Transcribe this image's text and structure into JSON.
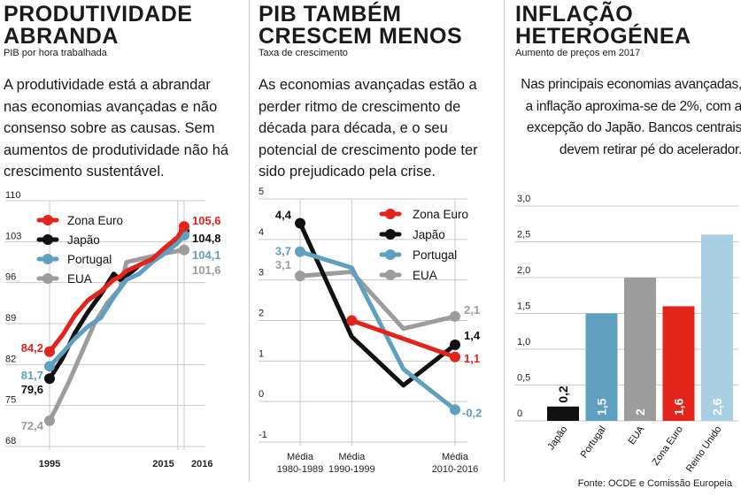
{
  "colors": {
    "zona_euro": "#e3241d",
    "japao": "#111111",
    "portugal": "#5f9fc0",
    "eua": "#9c9c9c",
    "grid": "#c9c9c9"
  },
  "panel1": {
    "title_lines": [
      "PRODUTIVIDADE",
      "ABRANDA"
    ],
    "subtitle": "PIB por hora trabalhada",
    "text": "A produtividade está a abrandar nas economias avançadas e não consenso sobre as causas. Sem aumentos de produtividade não há crescimento sustentável."
  },
  "panel2": {
    "title_lines": [
      "PIB TAMBÉM",
      "CRESCEM MENOS"
    ],
    "subtitle": "Taxa de crescimento",
    "text": "As economias avançadas estão a perder ritmo de crescimento de década para década, e o seu potencial de crescimento pode ter sido prejudicado pela crise."
  },
  "panel3": {
    "title_lines": [
      "INFLAÇÃO",
      "HETEROGÉNEA"
    ],
    "subtitle": "Aumento de preços em 2017",
    "text": "Nas principais economias avançadas, a inflação aproxima-se de 2%, com a excepção do Japão. Bancos centrais devem retirar pé do acelerador."
  },
  "footer": "Fonte: OCDE e Comissão Europeia",
  "chart_data": [
    {
      "type": "line",
      "title": "PRODUTIVIDADE ABRANDA",
      "ylabel": "PIB por hora trabalhada",
      "ylim": [
        68,
        110
      ],
      "yticks": [
        68,
        75,
        82,
        89,
        96,
        103,
        110
      ],
      "xlim": [
        1995,
        2016
      ],
      "xticks": [
        {
          "value": 1995,
          "label": "1995"
        },
        {
          "value": 2015,
          "label": "2015"
        },
        {
          "value": 2016,
          "label": "2016"
        }
      ],
      "series": [
        {
          "name": "EUA",
          "color": "#9c9c9c",
          "points": [
            [
              1995,
              72.4
            ],
            [
              1996,
              74.5
            ],
            [
              1998,
              79
            ],
            [
              2000,
              84
            ],
            [
              2002,
              89
            ],
            [
              2004,
              92.5
            ],
            [
              2006,
              95
            ],
            [
              2007,
              99.5
            ],
            [
              2009,
              100
            ],
            [
              2011,
              100.5
            ],
            [
              2013,
              101
            ],
            [
              2015,
              101.4
            ],
            [
              2016,
              101.6
            ]
          ],
          "start_label": "72,4",
          "end_label": "101,6"
        },
        {
          "name": "Japão",
          "color": "#111111",
          "points": [
            [
              1995,
              79.6
            ],
            [
              1997,
              83
            ],
            [
              1999,
              87.5
            ],
            [
              2001,
              91
            ],
            [
              2003,
              94
            ],
            [
              2005,
              97.5
            ],
            [
              2006,
              96.5
            ],
            [
              2008,
              98
            ],
            [
              2009,
              99
            ],
            [
              2011,
              100
            ],
            [
              2013,
              101.5
            ],
            [
              2015,
              103.6
            ],
            [
              2016,
              104.8
            ]
          ],
          "start_label": "79,6",
          "end_label": "104,8"
        },
        {
          "name": "Portugal",
          "color": "#5f9fc0",
          "points": [
            [
              1995,
              81.7
            ],
            [
              1997,
              84
            ],
            [
              1999,
              86.5
            ],
            [
              2001,
              88.5
            ],
            [
              2003,
              90
            ],
            [
              2005,
              93.5
            ],
            [
              2007,
              96.5
            ],
            [
              2009,
              97.5
            ],
            [
              2011,
              99.5
            ],
            [
              2013,
              101
            ],
            [
              2015,
              102.8
            ],
            [
              2016,
              104.1
            ]
          ],
          "start_label": "81,7",
          "end_label": "104,1"
        },
        {
          "name": "Zona Euro",
          "color": "#e3241d",
          "points": [
            [
              1995,
              84.2
            ],
            [
              1997,
              87
            ],
            [
              1999,
              90.5
            ],
            [
              2001,
              93
            ],
            [
              2003,
              94.5
            ],
            [
              2005,
              96.5
            ],
            [
              2006,
              97
            ],
            [
              2007,
              98
            ],
            [
              2009,
              99
            ],
            [
              2011,
              100
            ],
            [
              2013,
              102
            ],
            [
              2015,
              103.8
            ],
            [
              2016,
              105.6
            ]
          ],
          "start_label": "84,2",
          "end_label": "105,6"
        }
      ],
      "legend": [
        "Zona Euro",
        "Japão",
        "Portugal",
        "EUA"
      ]
    },
    {
      "type": "line",
      "title": "PIB TAMBÉM CRESCEM MENOS",
      "ylabel": "Taxa de crescimento",
      "ylim": [
        -1,
        5
      ],
      "yticks": [
        -1,
        0,
        1,
        2,
        3,
        4,
        5
      ],
      "xlim": [
        0,
        3
      ],
      "xticks": [
        {
          "value": 0,
          "label": "Média 1980-1989"
        },
        {
          "value": 1,
          "label": "Média 1990-1999"
        },
        {
          "value": 3,
          "label": "Média 2010-2016"
        }
      ],
      "series": [
        {
          "name": "EUA",
          "color": "#9c9c9c",
          "points": [
            [
              0,
              3.1
            ],
            [
              1,
              3.2
            ],
            [
              2,
              1.8
            ],
            [
              3,
              2.1
            ]
          ],
          "start_label": "3,1",
          "end_label": "2,1"
        },
        {
          "name": "Japão",
          "color": "#111111",
          "points": [
            [
              0,
              4.4
            ],
            [
              1,
              1.6
            ],
            [
              2,
              0.4
            ],
            [
              3,
              1.4
            ]
          ],
          "start_label": "4,4",
          "end_label": "1,4"
        },
        {
          "name": "Portugal",
          "color": "#5f9fc0",
          "points": [
            [
              0,
              3.7
            ],
            [
              1,
              3.3
            ],
            [
              2,
              0.8
            ],
            [
              3,
              -0.2
            ]
          ],
          "start_label": "3,7",
          "end_label": "-0,2"
        },
        {
          "name": "Zona Euro",
          "color": "#e3241d",
          "points": [
            [
              1,
              2.0
            ],
            [
              3,
              1.1
            ]
          ],
          "start_label": "",
          "end_label": "1,1"
        }
      ],
      "legend": [
        "Zona Euro",
        "Japão",
        "Portugal",
        "EUA"
      ]
    },
    {
      "type": "bar",
      "title": "INFLAÇÃO HETEROGÉNEA",
      "ylabel": "Aumento de preços em 2017",
      "ylim": [
        0,
        3
      ],
      "yticks": [
        {
          "value": 0,
          "label": "0"
        },
        {
          "value": 0.5,
          "label": "0,5"
        },
        {
          "value": 1,
          "label": "1,0"
        },
        {
          "value": 1.5,
          "label": "1,5"
        },
        {
          "value": 2,
          "label": "2,0"
        },
        {
          "value": 2.5,
          "label": "2,5"
        },
        {
          "value": 3,
          "label": "3,0"
        }
      ],
      "categories": [
        "Japão",
        "Portugal",
        "EUA",
        "Zona Euro",
        "Reino Unido"
      ],
      "values": [
        0.2,
        1.5,
        2.0,
        1.6,
        2.6
      ],
      "value_labels": [
        "0,2",
        "1,5",
        "2",
        "1,6",
        "2,6"
      ],
      "colors": [
        "#111111",
        "#5f9fc0",
        "#9c9c9c",
        "#e3241d",
        "#a9cfe3"
      ]
    }
  ]
}
